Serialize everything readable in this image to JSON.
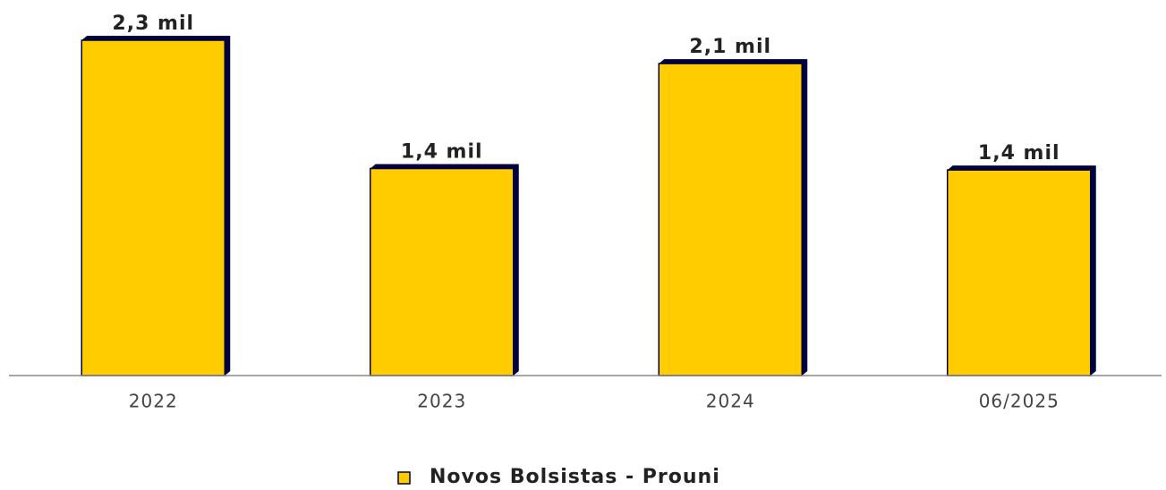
{
  "chart_data": {
    "type": "bar",
    "categories": [
      "2022",
      "2023",
      "2024",
      "06/2025"
    ],
    "series": [
      {
        "name": "Novos Bolsistas - Prouni",
        "color": "#ffcc00",
        "values": [
          2300,
          1420,
          2140,
          1410
        ],
        "value_labels": [
          "2,3 mil",
          "1,4 mil",
          "2,1 mil",
          "1,4 mil"
        ]
      }
    ],
    "legend": "bottom"
  }
}
